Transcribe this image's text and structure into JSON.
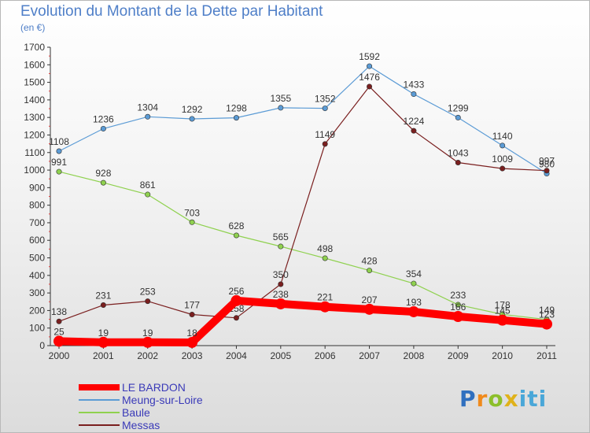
{
  "header": {
    "title": "Evolution du Montant de la Dette par Habitant",
    "subtitle": "(en €)"
  },
  "brand": {
    "text": "Proxiti"
  },
  "chart_data": {
    "type": "line",
    "title": "Evolution du Montant de la Dette par Habitant",
    "subtitle": "(en €)",
    "x": [
      2000,
      2001,
      2002,
      2003,
      2004,
      2005,
      2006,
      2007,
      2008,
      2009,
      2010,
      2011
    ],
    "ylim": [
      0,
      1700
    ],
    "yticks": [
      0,
      100,
      200,
      300,
      400,
      500,
      600,
      700,
      800,
      900,
      1000,
      1100,
      1200,
      1300,
      1400,
      1500,
      1600,
      1700
    ],
    "grid": false,
    "legend_position": "bottom-left",
    "series": [
      {
        "name": "LE BARDON",
        "color": "#ff0000",
        "emphasis": true,
        "values": [
          25,
          19,
          19,
          18,
          256,
          238,
          221,
          207,
          193,
          166,
          145,
          123
        ],
        "labels": [
          "25",
          "19",
          "19",
          "18",
          "256",
          "238",
          "221",
          "207",
          "193",
          "166",
          "145",
          "123"
        ]
      },
      {
        "name": "Meung-sur-Loire",
        "color": "#5b9bd5",
        "values": [
          1108,
          1236,
          1304,
          1292,
          1298,
          1355,
          1352,
          1592,
          1433,
          1299,
          1140,
          980
        ],
        "labels": [
          "1108",
          "1236",
          "1304",
          "1292",
          "1298",
          "1355",
          "1352",
          "1592",
          "1433",
          "1299",
          "1140",
          "980"
        ]
      },
      {
        "name": "Baule",
        "color": "#8fd14f",
        "values": [
          991,
          928,
          861,
          703,
          628,
          565,
          498,
          428,
          354,
          233,
          178,
          149
        ],
        "labels": [
          "991",
          "928",
          "861",
          "703",
          "628",
          "565",
          "498",
          "428",
          "354",
          "233",
          "178",
          "149"
        ]
      },
      {
        "name": "Messas",
        "color": "#7a1f1f",
        "values": [
          138,
          231,
          253,
          177,
          158,
          350,
          1149,
          1476,
          1224,
          1043,
          1009,
          997
        ],
        "labels": [
          "138",
          "231",
          "253",
          "177",
          "158",
          "350",
          "1149",
          "1476",
          "1224",
          "1043",
          "1009",
          "997"
        ]
      }
    ]
  }
}
